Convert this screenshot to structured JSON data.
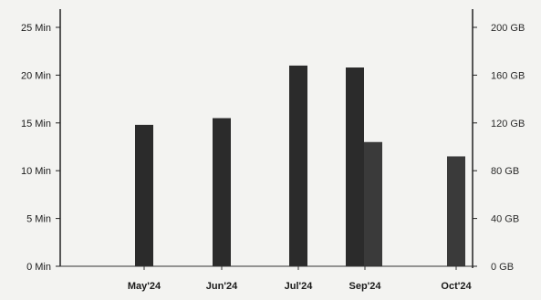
{
  "chart_data": {
    "type": "bar",
    "categories": [
      "May'24",
      "Jun'24",
      "Jul'24",
      "Sep'24",
      "Oct'24"
    ],
    "y_left": {
      "ticks": [
        0,
        5,
        10,
        15,
        20,
        25
      ],
      "tick_labels": [
        "0 Min",
        "5 Min",
        "10 Min",
        "15 Min",
        "20 Min",
        "25 Min"
      ],
      "ylim": [
        0,
        25
      ]
    },
    "y_right": {
      "ticks": [
        0,
        40,
        80,
        120,
        160,
        200
      ],
      "tick_labels": [
        "0 GB",
        "40 GB",
        "80 GB",
        "120 GB",
        "160 GB",
        "200 GB"
      ],
      "ylim": [
        0,
        200
      ]
    },
    "series": [
      {
        "axis": "left",
        "color": "#2b2b2b",
        "values": [
          14.8,
          15.5,
          21.0,
          20.8,
          null
        ]
      },
      {
        "axis": "right",
        "color": "#3a3a3a",
        "values": [
          null,
          null,
          null,
          104,
          92
        ]
      }
    ],
    "grid": false,
    "legend": "none"
  }
}
